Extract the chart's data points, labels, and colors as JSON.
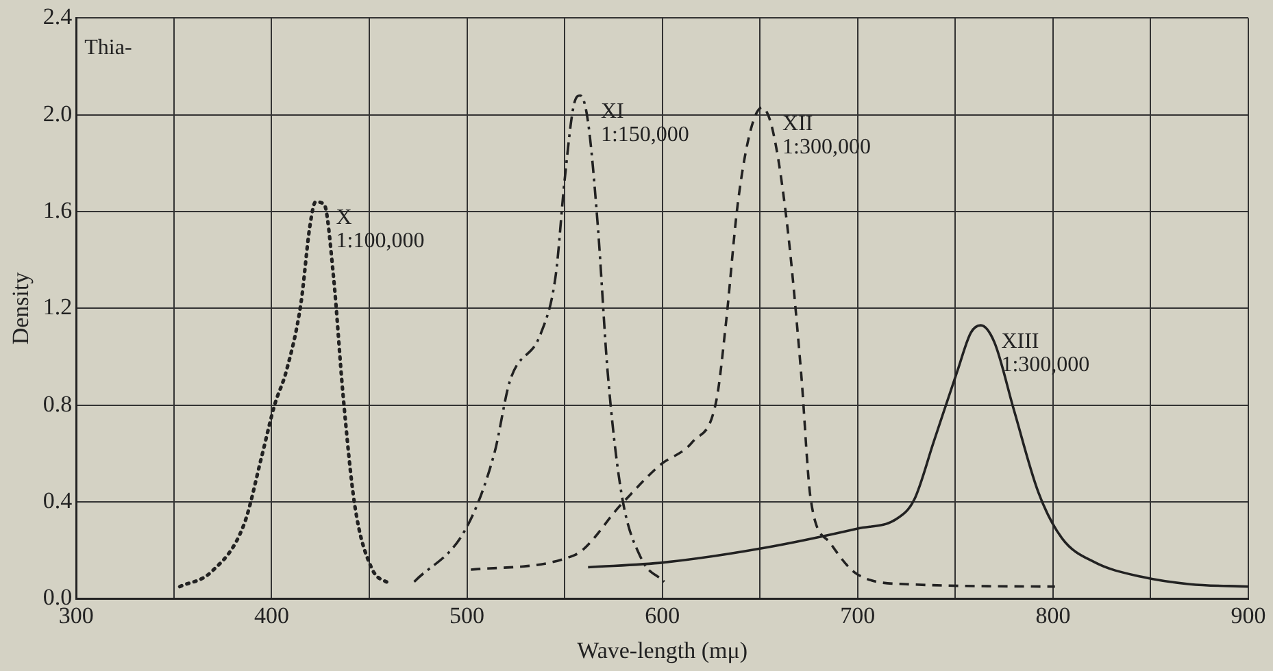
{
  "chart_data": {
    "type": "line",
    "xlabel": "Wave-length (mμ)",
    "ylabel": "Density",
    "xlim": [
      300,
      900
    ],
    "ylim": [
      0,
      2.4
    ],
    "xticks": [
      300,
      {
        "value": 350,
        "label": null
      },
      400,
      {
        "value": 450,
        "label": null
      },
      500,
      {
        "value": 550,
        "label": null
      },
      600,
      {
        "value": 650,
        "label": null
      },
      700,
      {
        "value": 750,
        "label": null
      },
      800,
      {
        "value": 850,
        "label": null
      },
      900
    ],
    "yticks": [
      {
        "value": 0,
        "label": "0.0"
      },
      0.4,
      0.8,
      1.2,
      1.6,
      {
        "value": 2,
        "label": "2.0"
      },
      2.4
    ],
    "grid": true,
    "legend": false,
    "marker": "none",
    "series": [
      {
        "name": "X 1:100,000",
        "color": "#222222",
        "line_style": "dotted",
        "x": [
          353,
          369,
          386,
          395,
          401.5,
          407.5,
          415,
          419.6,
          422.5,
          426.9,
          431.7,
          436.6,
          442.5,
          451,
          460.5
        ],
        "values": [
          0.05,
          0.11,
          0.31,
          0.59,
          0.8,
          0.94,
          1.22,
          1.54,
          1.64,
          1.63,
          1.33,
          0.84,
          0.39,
          0.13,
          0.06
        ]
      },
      {
        "name": "XI 1:150,000",
        "color": "#222222",
        "line_style": "dashdot",
        "x": [
          473,
          499.5,
          514,
          522,
          538,
          545.5,
          550,
          555,
          558,
          562,
          567,
          572,
          579,
          589,
          601
        ],
        "values": [
          0.07,
          0.29,
          0.6,
          0.9,
          1.1,
          1.34,
          1.73,
          2.05,
          2.08,
          1.97,
          1.54,
          0.94,
          0.44,
          0.17,
          0.07
        ]
      },
      {
        "name": "XII 1:300,000",
        "color": "#222222",
        "line_style": "dashed",
        "x": [
          502,
          555,
          579,
          598.5,
          615.7,
          627.7,
          632.6,
          638.6,
          645,
          651,
          656.7,
          664,
          671,
          676,
          686,
          700,
          725,
          801
        ],
        "values": [
          0.12,
          0.18,
          0.39,
          0.55,
          0.65,
          0.82,
          1.14,
          1.63,
          1.93,
          2.03,
          1.93,
          1.54,
          0.94,
          0.41,
          0.23,
          0.1,
          0.06,
          0.05
        ]
      },
      {
        "name": "XIII 1:300,000",
        "color": "#222222",
        "line_style": "solid",
        "x": [
          562,
          601,
          652,
          700,
          720,
          729,
          739,
          751,
          758,
          763,
          770,
          780,
          792.5,
          804.6,
          821.5,
          845.6,
          870,
          900
        ],
        "values": [
          0.13,
          0.15,
          0.21,
          0.29,
          0.33,
          0.41,
          0.65,
          0.94,
          1.1,
          1.13,
          1.06,
          0.78,
          0.44,
          0.25,
          0.15,
          0.09,
          0.06,
          0.05
        ]
      }
    ],
    "annotations": [
      "Thia-"
    ]
  }
}
